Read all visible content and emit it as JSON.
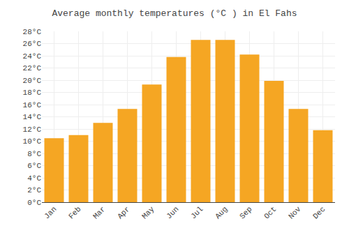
{
  "chart_data": {
    "type": "bar",
    "title": "Average monthly temperatures (°C ) in El Fahs",
    "categories": [
      "Jan",
      "Feb",
      "Mar",
      "Apr",
      "May",
      "Jun",
      "Jul",
      "Aug",
      "Sep",
      "Oct",
      "Nov",
      "Dec"
    ],
    "values": [
      10.5,
      11.0,
      13.0,
      15.3,
      19.3,
      23.8,
      26.6,
      26.6,
      24.2,
      19.9,
      15.3,
      11.8
    ],
    "color": "#F5A623",
    "ylim": [
      0,
      28
    ],
    "yticks": [
      {
        "value": 0,
        "label": "0°C"
      },
      {
        "value": 2,
        "label": "2°C"
      },
      {
        "value": 4,
        "label": "4°C"
      },
      {
        "value": 6,
        "label": "6°C"
      },
      {
        "value": 8,
        "label": "8°C"
      },
      {
        "value": 10,
        "label": "10°C"
      },
      {
        "value": 12,
        "label": "12°C"
      },
      {
        "value": 14,
        "label": "14°C"
      },
      {
        "value": 16,
        "label": "16°C"
      },
      {
        "value": 18,
        "label": "18°C"
      },
      {
        "value": 20,
        "label": "20°C"
      },
      {
        "value": 22,
        "label": "22°C"
      },
      {
        "value": 24,
        "label": "24°C"
      },
      {
        "value": 26,
        "label": "26°C"
      },
      {
        "value": 28,
        "label": "28°C"
      }
    ],
    "grid": true
  }
}
